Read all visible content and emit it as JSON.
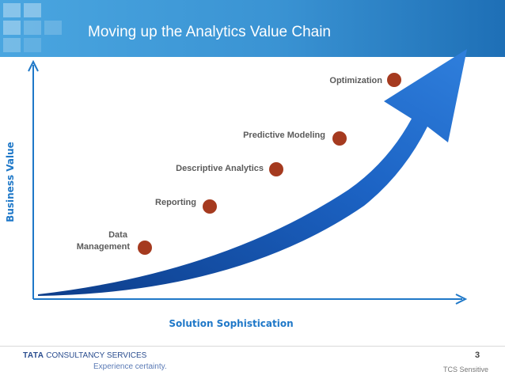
{
  "slide": {
    "title": "Moving up the Analytics Value Chain",
    "page_number": "3",
    "sensitivity": "TCS Sensitive"
  },
  "footer": {
    "company_mark": "TATA",
    "company_rest": "CONSULTANCY SERVICES",
    "tagline": "Experience certainty."
  },
  "diagram": {
    "y_axis_title": "Business Value",
    "x_axis_title": "Solution Sophistication",
    "stages": [
      {
        "lines": [
          "Data",
          "Management"
        ]
      },
      {
        "lines": [
          "Reporting"
        ]
      },
      {
        "lines": [
          "Descriptive Analytics"
        ]
      },
      {
        "lines": [
          "Predictive Modeling"
        ]
      },
      {
        "lines": [
          "Optimization"
        ]
      }
    ],
    "colors": {
      "header": "#3a93d3",
      "arrow": "#1c63c4",
      "dot": "#a53a1f",
      "axis_title": "#1f78c8",
      "label": "#5b5b5b"
    }
  }
}
